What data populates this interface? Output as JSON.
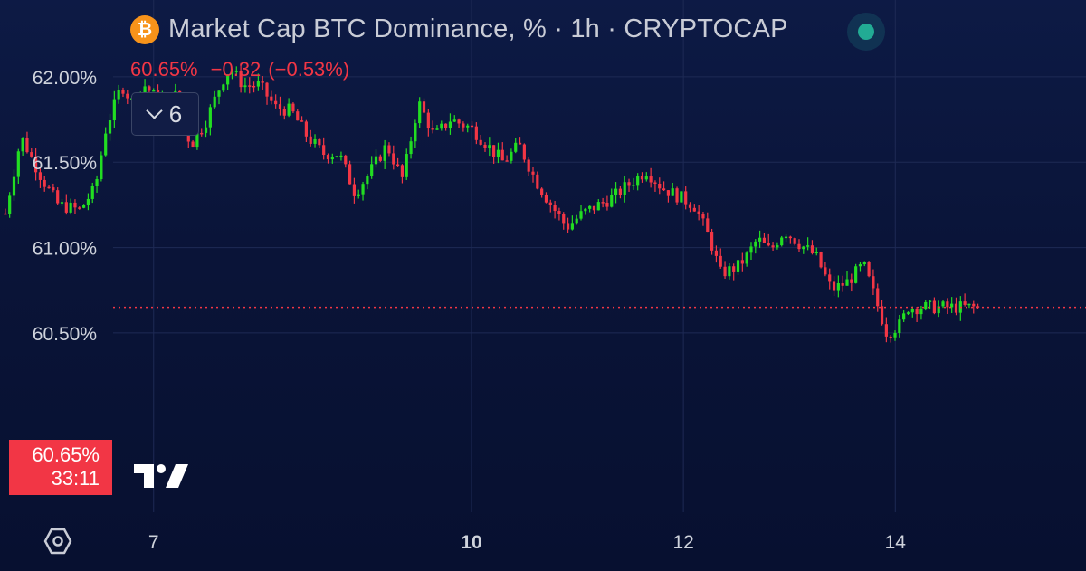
{
  "header": {
    "icon": "bitcoin-icon",
    "icon_glyph": "₿",
    "title": "Market Cap BTC Dominance, % · 1h · CRYPTOCAP",
    "status_color": "#22ab94"
  },
  "quote": {
    "last": "60.65%",
    "change": "−0.32",
    "change_pct": "(−0.53%)",
    "color": "#f23645"
  },
  "collapse_button": {
    "count": "6"
  },
  "price_tag": {
    "price": "60.65%",
    "countdown": "33:11"
  },
  "colors": {
    "up": "#22dd22",
    "down": "#f23645",
    "grid": "#1e2a55",
    "text": "#cfd3dc"
  },
  "chart_data": {
    "type": "candlestick",
    "title": "Market Cap BTC Dominance, % · 1h · CRYPTOCAP",
    "ylim": [
      59.45,
      62.45
    ],
    "y_ticks": [
      "62.00%",
      "61.50%",
      "61.00%",
      "60.50%"
    ],
    "y_tick_values": [
      62.0,
      61.5,
      61.0,
      60.5
    ],
    "x_range": [
      5.55,
      15.8
    ],
    "x_ticks": [
      {
        "label": "7",
        "value": 7,
        "bold": false
      },
      {
        "label": "10",
        "value": 10,
        "bold": true
      },
      {
        "label": "12",
        "value": 12,
        "bold": false
      },
      {
        "label": "14",
        "value": 14,
        "bold": false
      }
    ],
    "current_price": 60.65,
    "path_x": [
      5.6,
      5.75,
      5.95,
      6.1,
      6.3,
      6.45,
      6.55,
      6.7,
      6.8,
      6.92,
      7.05,
      7.2,
      7.35,
      7.5,
      7.65,
      7.72,
      7.85,
      8.0,
      8.15,
      8.3,
      8.45,
      8.6,
      8.75,
      8.9,
      9.05,
      9.2,
      9.35,
      9.5,
      9.65,
      9.8,
      9.92,
      10.0,
      10.15,
      10.3,
      10.45,
      10.6,
      10.75,
      10.9,
      11.05,
      11.2,
      11.35,
      11.5,
      11.65,
      11.8,
      11.95,
      12.1,
      12.25,
      12.35,
      12.5,
      12.6,
      12.7,
      12.82,
      12.95,
      13.1,
      13.25,
      13.4,
      13.55,
      13.7,
      13.8,
      13.92,
      14.05,
      14.12,
      14.2,
      14.28,
      14.4,
      14.5,
      14.6,
      14.68,
      14.72,
      14.78
    ],
    "path_y": [
      61.2,
      61.65,
      61.4,
      61.25,
      61.22,
      61.35,
      61.7,
      61.95,
      61.85,
      61.95,
      61.85,
      61.9,
      61.6,
      61.75,
      61.98,
      62.05,
      61.95,
      61.95,
      61.82,
      61.8,
      61.65,
      61.55,
      61.55,
      61.32,
      61.45,
      61.6,
      61.4,
      61.85,
      61.65,
      61.75,
      61.72,
      61.7,
      61.6,
      61.5,
      61.6,
      61.4,
      61.25,
      61.12,
      61.2,
      61.25,
      61.3,
      61.38,
      61.45,
      61.35,
      61.3,
      61.25,
      61.05,
      60.85,
      60.88,
      60.95,
      61.05,
      60.98,
      61.1,
      61.02,
      60.95,
      60.75,
      60.8,
      60.9,
      60.72,
      60.5,
      60.55,
      60.65,
      60.65,
      60.65,
      60.65,
      60.65,
      60.65,
      60.65,
      60.65,
      60.65
    ]
  }
}
